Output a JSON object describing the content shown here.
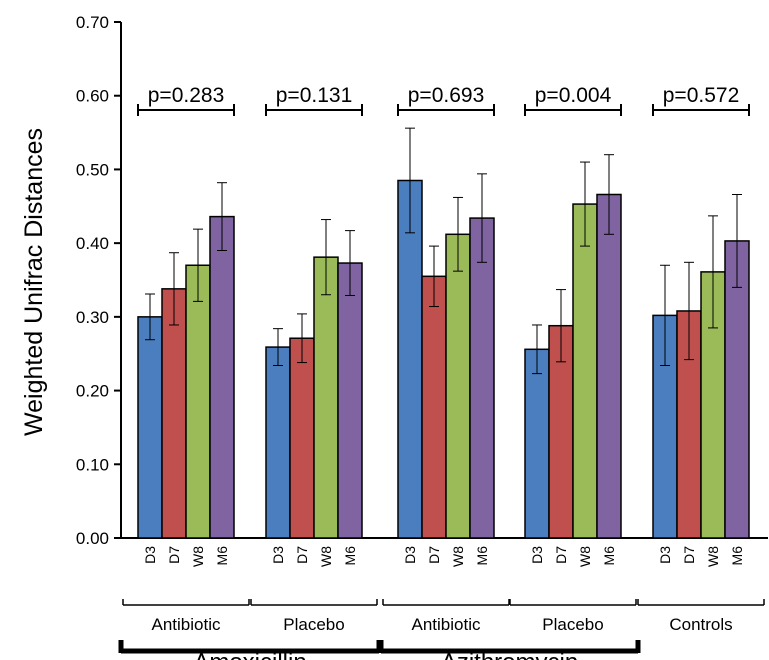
{
  "chart_data": {
    "type": "bar",
    "title": "",
    "xlabel": "",
    "ylabel": "Weighted Unifrac Distances",
    "ylim": [
      0,
      0.7
    ],
    "yticks": [
      "0.00",
      "0.10",
      "0.20",
      "0.30",
      "0.40",
      "0.50",
      "0.60",
      "0.70"
    ],
    "grid": false,
    "legend": "none",
    "timepoints": [
      "D3",
      "D7",
      "W8",
      "M6"
    ],
    "series_colors": [
      "#4a7ebf",
      "#c0504d",
      "#9bbb59",
      "#8064a2"
    ],
    "groups": [
      {
        "label": "Antibiotic",
        "pvalue": "p=0.283",
        "values": [
          0.3,
          0.338,
          0.37,
          0.436
        ],
        "errors": [
          0.031,
          0.049,
          0.049,
          0.046
        ]
      },
      {
        "label": "Placebo",
        "pvalue": "p=0.131",
        "values": [
          0.259,
          0.271,
          0.381,
          0.373
        ],
        "errors": [
          0.025,
          0.033,
          0.051,
          0.044
        ]
      },
      {
        "label": "Antibiotic",
        "pvalue": "p=0.693",
        "values": [
          0.485,
          0.355,
          0.412,
          0.434
        ],
        "errors": [
          0.071,
          0.041,
          0.05,
          0.06
        ]
      },
      {
        "label": "Placebo",
        "pvalue": "p=0.004",
        "values": [
          0.256,
          0.288,
          0.453,
          0.466
        ],
        "errors": [
          0.033,
          0.049,
          0.057,
          0.054
        ]
      },
      {
        "label": "Controls",
        "pvalue": "p=0.572",
        "values": [
          0.302,
          0.308,
          0.361,
          0.403
        ],
        "errors": [
          0.068,
          0.066,
          0.076,
          0.063
        ]
      }
    ],
    "drugs": [
      {
        "label": "Amoxicillin",
        "groups": [
          0,
          1
        ]
      },
      {
        "label": "Azithromycin",
        "groups": [
          2,
          3
        ]
      }
    ]
  }
}
